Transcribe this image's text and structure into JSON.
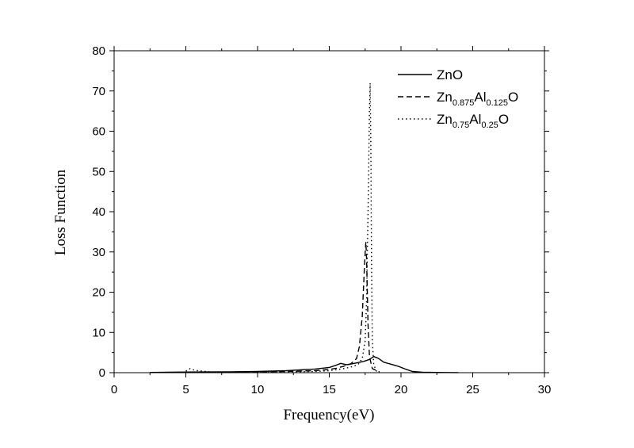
{
  "chart_data": {
    "type": "line",
    "title": "",
    "xlabel": "Frequency(eV)",
    "ylabel": "Loss Function",
    "xlim": [
      0,
      30
    ],
    "ylim": [
      0,
      80
    ],
    "xticks": [
      "0",
      "5",
      "10",
      "15",
      "20",
      "25",
      "30"
    ],
    "yticks": [
      "0",
      "10",
      "20",
      "30",
      "40",
      "50",
      "60",
      "70",
      "80"
    ],
    "grid": false,
    "legend_position": "top-right",
    "series": [
      {
        "name": "ZnO",
        "legend_parts": [
          {
            "t": "ZnO",
            "sub": false
          }
        ],
        "line_style": "solid",
        "x": [
          2.5,
          5,
          8,
          10,
          12,
          13,
          14,
          15,
          15.5,
          15.8,
          16.2,
          16.6,
          17.0,
          17.4,
          17.8,
          18.1,
          18.4,
          18.8,
          19.3,
          19.8,
          20.3,
          20.8,
          21.5,
          22.5,
          24
        ],
        "y": [
          0.05,
          0.15,
          0.2,
          0.3,
          0.5,
          0.7,
          0.9,
          1.3,
          1.9,
          2.3,
          2.0,
          2.2,
          2.5,
          2.8,
          3.3,
          4.0,
          3.6,
          2.6,
          2.1,
          1.6,
          0.9,
          0.3,
          0.1,
          0.05,
          0.02
        ]
      },
      {
        "name": "Zn0.875Al0.125O",
        "legend_parts": [
          {
            "t": "Zn",
            "sub": false
          },
          {
            "t": "0.875",
            "sub": true
          },
          {
            "t": "Al",
            "sub": false
          },
          {
            "t": "0.125",
            "sub": true
          },
          {
            "t": "O",
            "sub": false
          }
        ],
        "line_style": "dashed",
        "x": [
          3,
          5,
          8,
          10,
          12,
          13,
          14,
          15,
          15.5,
          16,
          16.5,
          16.9,
          17.1,
          17.3,
          17.4,
          17.5,
          17.55,
          17.6,
          17.7,
          17.8,
          18.0,
          18.5
        ],
        "y": [
          0.05,
          0.1,
          0.15,
          0.2,
          0.3,
          0.4,
          0.5,
          0.8,
          1.1,
          1.6,
          2.2,
          3.5,
          6.5,
          14,
          22,
          30,
          32.5,
          28,
          12,
          4,
          1,
          0.2
        ]
      },
      {
        "name": "Zn0.75Al0.25O",
        "legend_parts": [
          {
            "t": "Zn",
            "sub": false
          },
          {
            "t": "0.75",
            "sub": true
          },
          {
            "t": "Al",
            "sub": false
          },
          {
            "t": "0.25",
            "sub": true
          },
          {
            "t": "O",
            "sub": false
          }
        ],
        "line_style": "dotted",
        "x": [
          5.0,
          5.3,
          5.6,
          7,
          10,
          12,
          14,
          15,
          16,
          16.5,
          17.0,
          17.3,
          17.5,
          17.6,
          17.7,
          17.8,
          17.85,
          17.9,
          17.95,
          18.0,
          18.1,
          18.3
        ],
        "y": [
          0.4,
          1.0,
          0.6,
          0.1,
          0.15,
          0.2,
          0.3,
          0.5,
          1.0,
          1.4,
          2.0,
          3.5,
          8,
          18,
          40,
          65,
          72,
          55,
          25,
          8,
          2,
          0.3
        ]
      }
    ]
  }
}
